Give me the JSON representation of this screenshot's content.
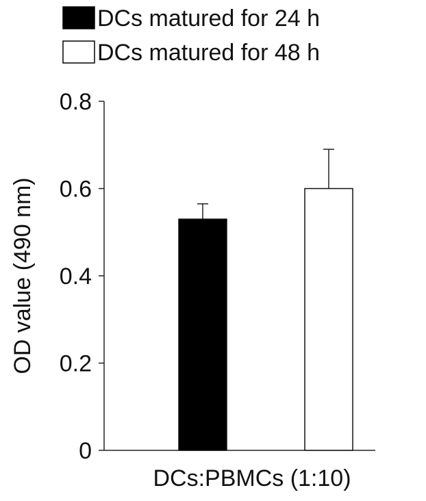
{
  "chart_data": {
    "type": "bar",
    "title": "",
    "xlabel": "DCs:PBMCs (1:10)",
    "ylabel": "OD value (490 nm)",
    "ylim": [
      0,
      0.8
    ],
    "yticks": [
      0,
      0.2,
      0.4,
      0.6,
      0.8
    ],
    "ytick_labels": [
      "0",
      "0.2",
      "0.4",
      "0.6",
      "0.8"
    ],
    "categories": [
      "DCs:PBMCs (1:10)"
    ],
    "series": [
      {
        "name": "DCs matured for 24 h",
        "values": [
          0.53
        ],
        "error": [
          0.035
        ],
        "color": "#000000"
      },
      {
        "name": "DCs matured for 48 h",
        "values": [
          0.6
        ],
        "error": [
          0.09
        ],
        "color": "#ffffff"
      }
    ],
    "legend_position": "top",
    "grid": false
  }
}
